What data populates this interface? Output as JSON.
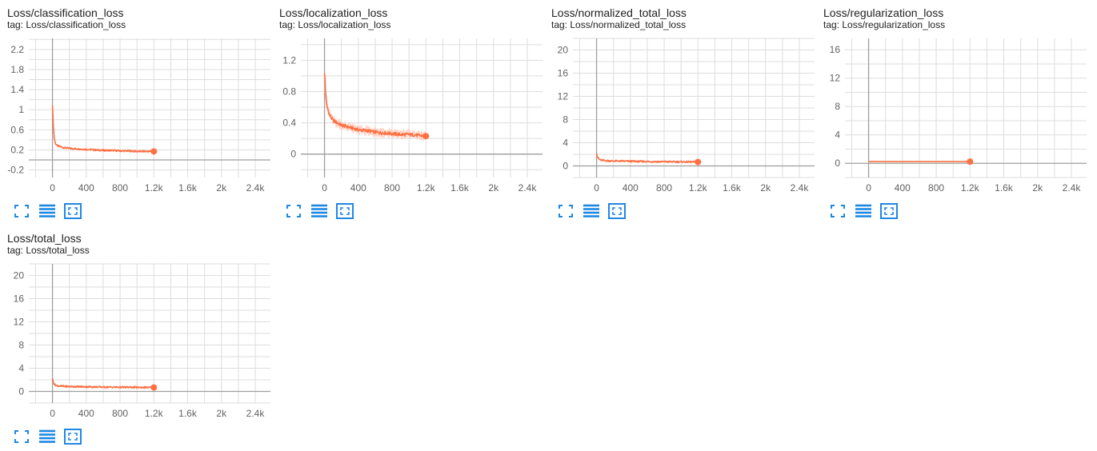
{
  "colors": {
    "series": "#ff7043",
    "series_faint": "#ffccbc",
    "grid": "#dddddd",
    "axis": "#9e9e9e",
    "tool": "#1e88e5"
  },
  "tool_icons": [
    "fullscreen-icon",
    "data-table-icon",
    "fit-domain-icon"
  ],
  "cards": [
    {
      "title": "Loss/classification_loss",
      "tag": "tag: Loss/classification_loss",
      "chart_data": {
        "type": "line",
        "xlim": [
          -280,
          2580
        ],
        "ylim": [
          -0.35,
          2.42
        ],
        "yticks": [
          -0.2,
          0.2,
          0.6,
          1,
          1.4,
          1.8,
          2.2
        ],
        "ytick_labels": [
          "-0.2",
          "0.2",
          "0.6",
          "1",
          "1.4",
          "1.8",
          "2.2"
        ],
        "xticks": [
          0,
          400,
          800,
          1200,
          1600,
          2000,
          2400
        ],
        "xtick_labels": [
          "0",
          "400",
          "800",
          "1.2k",
          "1.6k",
          "2k",
          "2.4k"
        ],
        "series": [
          {
            "x": [
              0,
              10,
              20,
              35,
              50,
              80,
              120,
              200,
              300,
              400,
              500,
              600,
              700,
              800,
              900,
              1000,
              1100,
              1200
            ],
            "y": [
              1.1,
              0.7,
              0.45,
              0.33,
              0.29,
              0.27,
              0.25,
              0.23,
              0.22,
              0.21,
              0.2,
              0.19,
              0.19,
              0.18,
              0.18,
              0.17,
              0.17,
              0.17
            ]
          }
        ]
      }
    },
    {
      "title": "Loss/localization_loss",
      "tag": "tag: Loss/localization_loss",
      "chart_data": {
        "type": "line",
        "xlim": [
          -280,
          2580
        ],
        "ylim": [
          -0.3,
          1.48
        ],
        "yticks": [
          0,
          0.4,
          0.8,
          1.2
        ],
        "ytick_labels": [
          "0",
          "0.4",
          "0.8",
          "1.2"
        ],
        "xticks": [
          0,
          400,
          800,
          1200,
          1600,
          2000,
          2400
        ],
        "xtick_labels": [
          "0",
          "400",
          "800",
          "1.2k",
          "1.6k",
          "2k",
          "2.4k"
        ],
        "series": [
          {
            "x": [
              0,
              15,
              30,
              60,
              100,
              150,
              200,
              300,
              400,
              500,
              600,
              700,
              800,
              900,
              1000,
              1100,
              1200
            ],
            "y": [
              1.05,
              0.75,
              0.6,
              0.5,
              0.43,
              0.4,
              0.37,
              0.34,
              0.31,
              0.3,
              0.28,
              0.27,
              0.26,
              0.25,
              0.25,
              0.24,
              0.23
            ]
          }
        ]
      }
    },
    {
      "title": "Loss/normalized_total_loss",
      "tag": "tag: Loss/normalized_total_loss",
      "chart_data": {
        "type": "line",
        "xlim": [
          -280,
          2580
        ],
        "ylim": [
          -2,
          22
        ],
        "yticks": [
          0,
          4,
          8,
          12,
          16,
          20
        ],
        "ytick_labels": [
          "0",
          "4",
          "8",
          "12",
          "16",
          "20"
        ],
        "xticks": [
          0,
          400,
          800,
          1200,
          1600,
          2000,
          2400
        ],
        "xtick_labels": [
          "0",
          "400",
          "800",
          "1.2k",
          "1.6k",
          "2k",
          "2.4k"
        ],
        "series": [
          {
            "x": [
              0,
              10,
              25,
              50,
              100,
              200,
              400,
              600,
              800,
              1000,
              1200
            ],
            "y": [
              2.3,
              1.6,
              1.2,
              1.0,
              0.9,
              0.85,
              0.8,
              0.75,
              0.72,
              0.7,
              0.68
            ]
          }
        ]
      }
    },
    {
      "title": "Loss/regularization_loss",
      "tag": "tag: Loss/regularization_loss",
      "chart_data": {
        "type": "line",
        "xlim": [
          -280,
          2580
        ],
        "ylim": [
          -2,
          17.6
        ],
        "yticks": [
          0,
          4,
          8,
          12,
          16
        ],
        "ytick_labels": [
          "0",
          "4",
          "8",
          "12",
          "16"
        ],
        "xticks": [
          0,
          400,
          800,
          1200,
          1600,
          2000,
          2400
        ],
        "xtick_labels": [
          "0",
          "400",
          "800",
          "1.2k",
          "1.6k",
          "2k",
          "2.4k"
        ],
        "series": [
          {
            "x": [
              0,
              400,
              800,
              1200
            ],
            "y": [
              0.24,
              0.24,
              0.24,
              0.24
            ]
          }
        ]
      }
    },
    {
      "title": "Loss/total_loss",
      "tag": "tag: Loss/total_loss",
      "chart_data": {
        "type": "line",
        "xlim": [
          -280,
          2580
        ],
        "ylim": [
          -2,
          22
        ],
        "yticks": [
          0,
          4,
          8,
          12,
          16,
          20
        ],
        "ytick_labels": [
          "0",
          "4",
          "8",
          "12",
          "16",
          "20"
        ],
        "xticks": [
          0,
          400,
          800,
          1200,
          1600,
          2000,
          2400
        ],
        "xtick_labels": [
          "0",
          "400",
          "800",
          "1.2k",
          "1.6k",
          "2k",
          "2.4k"
        ],
        "series": [
          {
            "x": [
              0,
              10,
              25,
              50,
              100,
              200,
              400,
              600,
              800,
              1000,
              1200
            ],
            "y": [
              2.3,
              1.6,
              1.2,
              1.0,
              0.9,
              0.85,
              0.8,
              0.75,
              0.72,
              0.7,
              0.68
            ]
          }
        ]
      }
    }
  ]
}
